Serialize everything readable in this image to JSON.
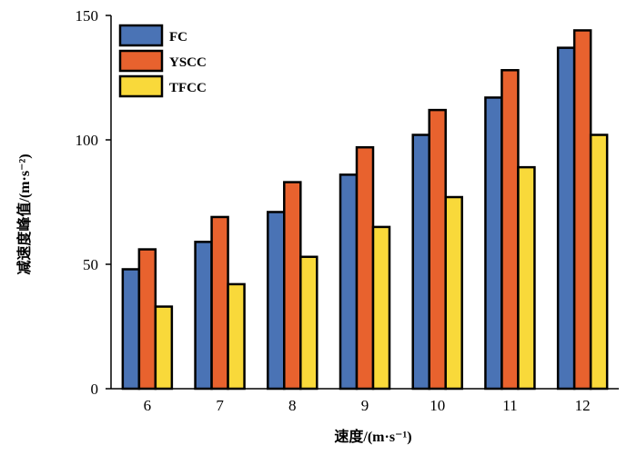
{
  "chart_data": {
    "type": "bar",
    "xlabel": "速度/(m·s⁻¹)",
    "ylabel": "减速度峰值/(m·s⁻²)",
    "categories": [
      "6",
      "7",
      "8",
      "9",
      "10",
      "11",
      "12"
    ],
    "series": [
      {
        "name": "FC",
        "color": "#4a73b5",
        "values": [
          48,
          59,
          71,
          86,
          102,
          117,
          137
        ]
      },
      {
        "name": "YSCC",
        "color": "#e8622e",
        "values": [
          56,
          69,
          83,
          97,
          112,
          128,
          144
        ]
      },
      {
        "name": "TFCC",
        "color": "#f9d93a",
        "values": [
          33,
          42,
          53,
          65,
          77,
          89,
          102
        ]
      }
    ],
    "ylim": [
      0,
      150
    ],
    "yticks": [
      0,
      50,
      100,
      150
    ],
    "grid": false,
    "legend_position": "top-left"
  }
}
